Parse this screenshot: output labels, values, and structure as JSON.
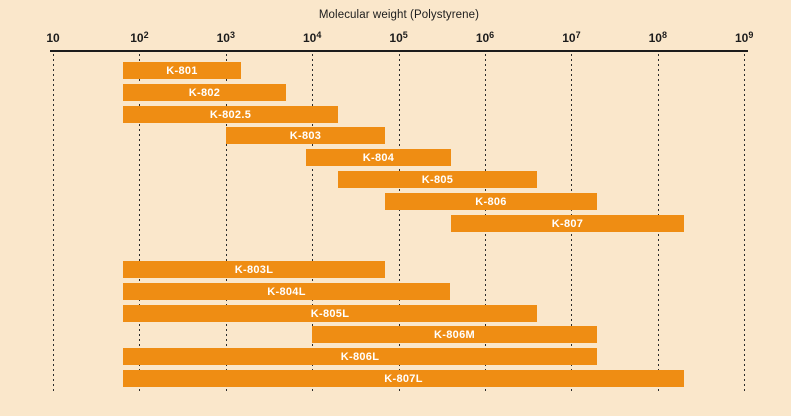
{
  "chart_data": {
    "type": "bar",
    "subtype": "horizontal-range-log",
    "title": "Molecular weight (Polystyrene)",
    "x_axis": {
      "label": "Molecular weight (Polystyrene)",
      "scale": "log10",
      "range": [
        10,
        1000000000
      ],
      "ticks": [
        "10",
        "10^2",
        "10^3",
        "10^4",
        "10^5",
        "10^6",
        "10^7",
        "10^8",
        "10^9"
      ],
      "tick_exponents": [
        1,
        2,
        3,
        4,
        5,
        6,
        7,
        8,
        9
      ]
    },
    "grid": {
      "vertical_dashed": true,
      "horizontal": false
    },
    "legend": "none",
    "bars": [
      {
        "label": "K-801",
        "min": 65,
        "max": 1500,
        "group": 0
      },
      {
        "label": "K-802",
        "min": 65,
        "max": 5000,
        "group": 0
      },
      {
        "label": "K-802.5",
        "min": 65,
        "max": 20000,
        "group": 0
      },
      {
        "label": "K-803",
        "min": 1000,
        "max": 70000,
        "group": 0
      },
      {
        "label": "K-804",
        "min": 8500,
        "max": 400000,
        "group": 0
      },
      {
        "label": "K-805",
        "min": 20000,
        "max": 4000000,
        "group": 0
      },
      {
        "label": "K-806",
        "min": 70000,
        "max": 20000000,
        "group": 0
      },
      {
        "label": "K-807",
        "min": 400000,
        "max": 200000000,
        "group": 0
      },
      {
        "label": "K-803L",
        "min": 65,
        "max": 70000,
        "group": 1
      },
      {
        "label": "K-804L",
        "min": 65,
        "max": 400000,
        "group": 1
      },
      {
        "label": "K-805L",
        "min": 65,
        "max": 4000000,
        "group": 1
      },
      {
        "label": "K-806M",
        "min": 10000,
        "max": 20000000,
        "group": 1
      },
      {
        "label": "K-806L",
        "min": 65,
        "max": 20000000,
        "group": 1
      },
      {
        "label": "K-807L",
        "min": 65,
        "max": 200000000,
        "group": 1
      }
    ],
    "colors": {
      "background": "#FAE7CB",
      "bar": "#EF8D13",
      "bar_label": "#FFFFFF",
      "axis": "#1C1C1C",
      "grid": "#2B2B2B",
      "title": "#1C1C1C"
    }
  }
}
